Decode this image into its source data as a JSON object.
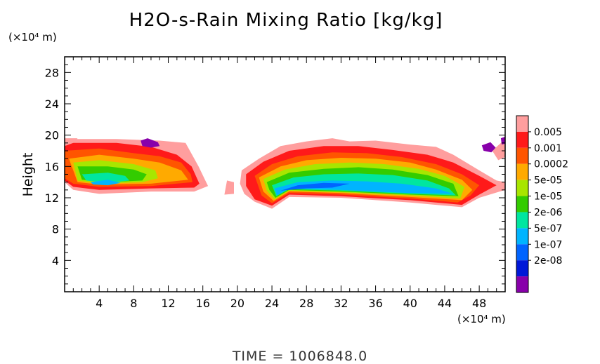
{
  "chart_data": {
    "type": "contour",
    "title": "H2O-s-Rain Mixing Ratio [kg/kg]",
    "ylabel": "Height",
    "x_unit": "(×10⁴ m)",
    "y_unit": "(×10⁴ m)",
    "xlim": [
      0,
      51
    ],
    "ylim": [
      0,
      30
    ],
    "x_ticks": [
      "4",
      "8",
      "12",
      "16",
      "20",
      "24",
      "28",
      "32",
      "36",
      "40",
      "44",
      "48"
    ],
    "y_ticks": [
      "4",
      "8",
      "12",
      "16",
      "20",
      "24",
      "28"
    ],
    "colorbar": {
      "labels": [
        "0.005",
        "0.001",
        "0.0002",
        "5e-05",
        "1e-05",
        "2e-06",
        "5e-07",
        "1e-07",
        "2e-08"
      ],
      "colors": [
        "#ff9e9e",
        "#ff1a1a",
        "#ff5500",
        "#ffaa00",
        "#a8e600",
        "#33cc00",
        "#00e6a0",
        "#00b4ff",
        "#0064ff",
        "#0018d8",
        "#8800aa"
      ]
    },
    "regions": [
      {
        "level": 0,
        "pts": [
          [
            0,
            19.5
          ],
          [
            6,
            19.5
          ],
          [
            11,
            19.3
          ],
          [
            14,
            19
          ],
          [
            15.5,
            16
          ],
          [
            16.6,
            13.5
          ],
          [
            15,
            12.8
          ],
          [
            10,
            12.8
          ],
          [
            4,
            12.5
          ],
          [
            1,
            13
          ],
          [
            0,
            14
          ]
        ]
      },
      {
        "level": 1,
        "pts": [
          [
            0,
            19
          ],
          [
            6,
            19
          ],
          [
            10,
            18.5
          ],
          [
            13,
            17.5
          ],
          [
            14.7,
            16
          ],
          [
            15.6,
            13.8
          ],
          [
            15,
            13.3
          ],
          [
            10,
            13.2
          ],
          [
            4,
            13
          ],
          [
            1,
            13.4
          ],
          [
            0,
            14.2
          ]
        ]
      },
      {
        "level": 2,
        "pts": [
          [
            0,
            18
          ],
          [
            4,
            18.3
          ],
          [
            8,
            17.7
          ],
          [
            11,
            17.3
          ],
          [
            13.5,
            16.5
          ],
          [
            14.6,
            15
          ],
          [
            14.8,
            14
          ],
          [
            10,
            13.5
          ],
          [
            4,
            13.4
          ],
          [
            1,
            13.8
          ],
          [
            0,
            14.5
          ]
        ]
      },
      {
        "level": 3,
        "pts": [
          [
            0.5,
            17
          ],
          [
            4,
            17.5
          ],
          [
            8,
            17
          ],
          [
            11,
            16.5
          ],
          [
            13.5,
            15.5
          ],
          [
            14.3,
            14.3
          ],
          [
            10,
            13.8
          ],
          [
            4,
            13.7
          ],
          [
            1.5,
            14
          ]
        ]
      },
      {
        "level": 4,
        "pts": [
          [
            1,
            16.5
          ],
          [
            4,
            16.8
          ],
          [
            8,
            16.3
          ],
          [
            10.5,
            15.5
          ],
          [
            10.8,
            14.5
          ],
          [
            9,
            14
          ],
          [
            4,
            13.8
          ],
          [
            1.5,
            14.2
          ]
        ]
      },
      {
        "level": 5,
        "pts": [
          [
            1.5,
            16
          ],
          [
            5,
            16
          ],
          [
            8,
            15.6
          ],
          [
            9.5,
            15
          ],
          [
            9,
            14.2
          ],
          [
            5,
            14
          ],
          [
            2,
            14.3
          ]
        ]
      },
      {
        "level": 6,
        "pts": [
          [
            2,
            15
          ],
          [
            5,
            15.2
          ],
          [
            7,
            14.8
          ],
          [
            7.5,
            14.2
          ],
          [
            5,
            13.9
          ],
          [
            2.5,
            14.2
          ]
        ]
      },
      {
        "level": 7,
        "pts": [
          [
            3,
            14
          ],
          [
            5,
            14.3
          ],
          [
            6.5,
            13.9
          ],
          [
            5,
            13.6
          ],
          [
            3.3,
            13.7
          ]
        ]
      },
      {
        "level": 0,
        "pts": [
          [
            18.8,
            14.2
          ],
          [
            19.6,
            14
          ],
          [
            19.6,
            12.5
          ],
          [
            18.5,
            12.4
          ]
        ]
      },
      {
        "level": 0,
        "pts": [
          [
            20.5,
            15.5
          ],
          [
            22.5,
            17
          ],
          [
            25,
            18.6
          ],
          [
            28,
            19.2
          ],
          [
            31,
            19.6
          ],
          [
            33,
            19.2
          ],
          [
            36,
            19.3
          ],
          [
            40,
            18.8
          ],
          [
            43,
            18.5
          ],
          [
            45,
            17.5
          ],
          [
            48,
            15.5
          ],
          [
            50,
            14.2
          ],
          [
            51,
            14
          ],
          [
            51,
            13
          ],
          [
            48,
            12
          ],
          [
            46,
            10.8
          ],
          [
            40,
            11.4
          ],
          [
            32,
            12
          ],
          [
            26,
            12.1
          ],
          [
            24,
            10.6
          ],
          [
            22,
            11.5
          ],
          [
            20.8,
            12.5
          ],
          [
            20.3,
            13.8
          ]
        ]
      },
      {
        "level": 1,
        "pts": [
          [
            21,
            15
          ],
          [
            23,
            16.6
          ],
          [
            26,
            18
          ],
          [
            30,
            18.6
          ],
          [
            34,
            18.6
          ],
          [
            38,
            18.1
          ],
          [
            42,
            17.5
          ],
          [
            45,
            16.5
          ],
          [
            48,
            14.8
          ],
          [
            50,
            13.6
          ],
          [
            48,
            12.4
          ],
          [
            46,
            11.1
          ],
          [
            40,
            11.7
          ],
          [
            32,
            12.2
          ],
          [
            26,
            12.4
          ],
          [
            24,
            11
          ],
          [
            22,
            11.8
          ],
          [
            21,
            13.5
          ]
        ]
      },
      {
        "level": 2,
        "pts": [
          [
            22,
            14.8
          ],
          [
            24,
            16.3
          ],
          [
            27,
            17.3
          ],
          [
            31,
            17.8
          ],
          [
            35,
            17.7
          ],
          [
            39,
            17.2
          ],
          [
            43,
            16.3
          ],
          [
            46,
            15
          ],
          [
            48,
            13.6
          ],
          [
            47,
            12.3
          ],
          [
            45.5,
            11.4
          ],
          [
            40,
            11.9
          ],
          [
            32,
            12.4
          ],
          [
            26,
            12.6
          ],
          [
            24,
            11.3
          ],
          [
            22.8,
            12.3
          ]
        ]
      },
      {
        "level": 3,
        "pts": [
          [
            22.5,
            14.6
          ],
          [
            25,
            16
          ],
          [
            28,
            16.8
          ],
          [
            32,
            17.1
          ],
          [
            36,
            17
          ],
          [
            40,
            16.5
          ],
          [
            43,
            15.6
          ],
          [
            46,
            14.3
          ],
          [
            47.2,
            13
          ],
          [
            46,
            11.7
          ],
          [
            40,
            12.1
          ],
          [
            32,
            12.6
          ],
          [
            26,
            12.8
          ],
          [
            24.2,
            11.6
          ],
          [
            23,
            12.8
          ]
        ]
      },
      {
        "level": 4,
        "pts": [
          [
            23,
            14.4
          ],
          [
            25.5,
            15.6
          ],
          [
            29,
            16.3
          ],
          [
            33,
            16.5
          ],
          [
            37,
            16.3
          ],
          [
            41,
            15.7
          ],
          [
            44,
            14.8
          ],
          [
            46.3,
            13.4
          ],
          [
            45.8,
            11.9
          ],
          [
            40,
            12.3
          ],
          [
            32,
            12.7
          ],
          [
            26,
            12.9
          ],
          [
            24.3,
            11.8
          ],
          [
            23.4,
            12.9
          ]
        ]
      },
      {
        "level": 5,
        "pts": [
          [
            23.4,
            14
          ],
          [
            26,
            15.2
          ],
          [
            30,
            15.7
          ],
          [
            34,
            15.9
          ],
          [
            38,
            15.6
          ],
          [
            42,
            14.9
          ],
          [
            45,
            13.8
          ],
          [
            45.6,
            12.2
          ],
          [
            40,
            12.4
          ],
          [
            32,
            12.8
          ],
          [
            26,
            13
          ],
          [
            24.4,
            12
          ],
          [
            23.7,
            13
          ]
        ]
      },
      {
        "level": 6,
        "pts": [
          [
            24,
            13.6
          ],
          [
            26.5,
            14.6
          ],
          [
            30,
            15
          ],
          [
            34,
            15.1
          ],
          [
            38,
            14.9
          ],
          [
            42,
            14.2
          ],
          [
            44.5,
            13.2
          ],
          [
            45.3,
            12.3
          ],
          [
            40,
            12.5
          ],
          [
            32,
            12.9
          ],
          [
            26,
            13.1
          ],
          [
            24.5,
            12.2
          ]
        ]
      },
      {
        "level": 7,
        "pts": [
          [
            24.3,
            13.2
          ],
          [
            27,
            14
          ],
          [
            31,
            14.2
          ],
          [
            35,
            14.1
          ],
          [
            39,
            13.8
          ],
          [
            43,
            13.2
          ],
          [
            45,
            12.5
          ],
          [
            40,
            12.6
          ],
          [
            32,
            13
          ],
          [
            26,
            13.2
          ],
          [
            24.6,
            12.3
          ]
        ]
      },
      {
        "level": 8,
        "pts": [
          [
            25,
            12.9
          ],
          [
            27,
            13.6
          ],
          [
            30,
            13.9
          ],
          [
            33,
            13.8
          ],
          [
            31,
            13.3
          ],
          [
            28,
            13.2
          ],
          [
            26,
            13
          ]
        ]
      },
      {
        "level": 0,
        "pts": [
          [
            0,
            19.6
          ],
          [
            1.5,
            19.6
          ],
          [
            1,
            19
          ],
          [
            0,
            18.6
          ]
        ]
      },
      {
        "level": 0,
        "pts": [
          [
            49.5,
            18
          ],
          [
            51,
            19.5
          ],
          [
            51,
            17.2
          ],
          [
            50.2,
            16.8
          ]
        ]
      },
      {
        "level": 10,
        "pts": [
          [
            8.8,
            19.3
          ],
          [
            9.6,
            19.6
          ],
          [
            10.8,
            19.1
          ],
          [
            11,
            18.6
          ],
          [
            10,
            18.4
          ],
          [
            9,
            18.6
          ]
        ]
      },
      {
        "level": 10,
        "pts": [
          [
            48.3,
            18.7
          ],
          [
            49.3,
            19.1
          ],
          [
            49.9,
            18.4
          ],
          [
            49.4,
            17.8
          ],
          [
            48.5,
            18
          ]
        ]
      },
      {
        "level": 10,
        "pts": [
          [
            50.5,
            19.6
          ],
          [
            51,
            19.8
          ],
          [
            51,
            18.9
          ],
          [
            50.6,
            18.8
          ]
        ]
      }
    ]
  },
  "time_label": "TIME = 1006848.0"
}
